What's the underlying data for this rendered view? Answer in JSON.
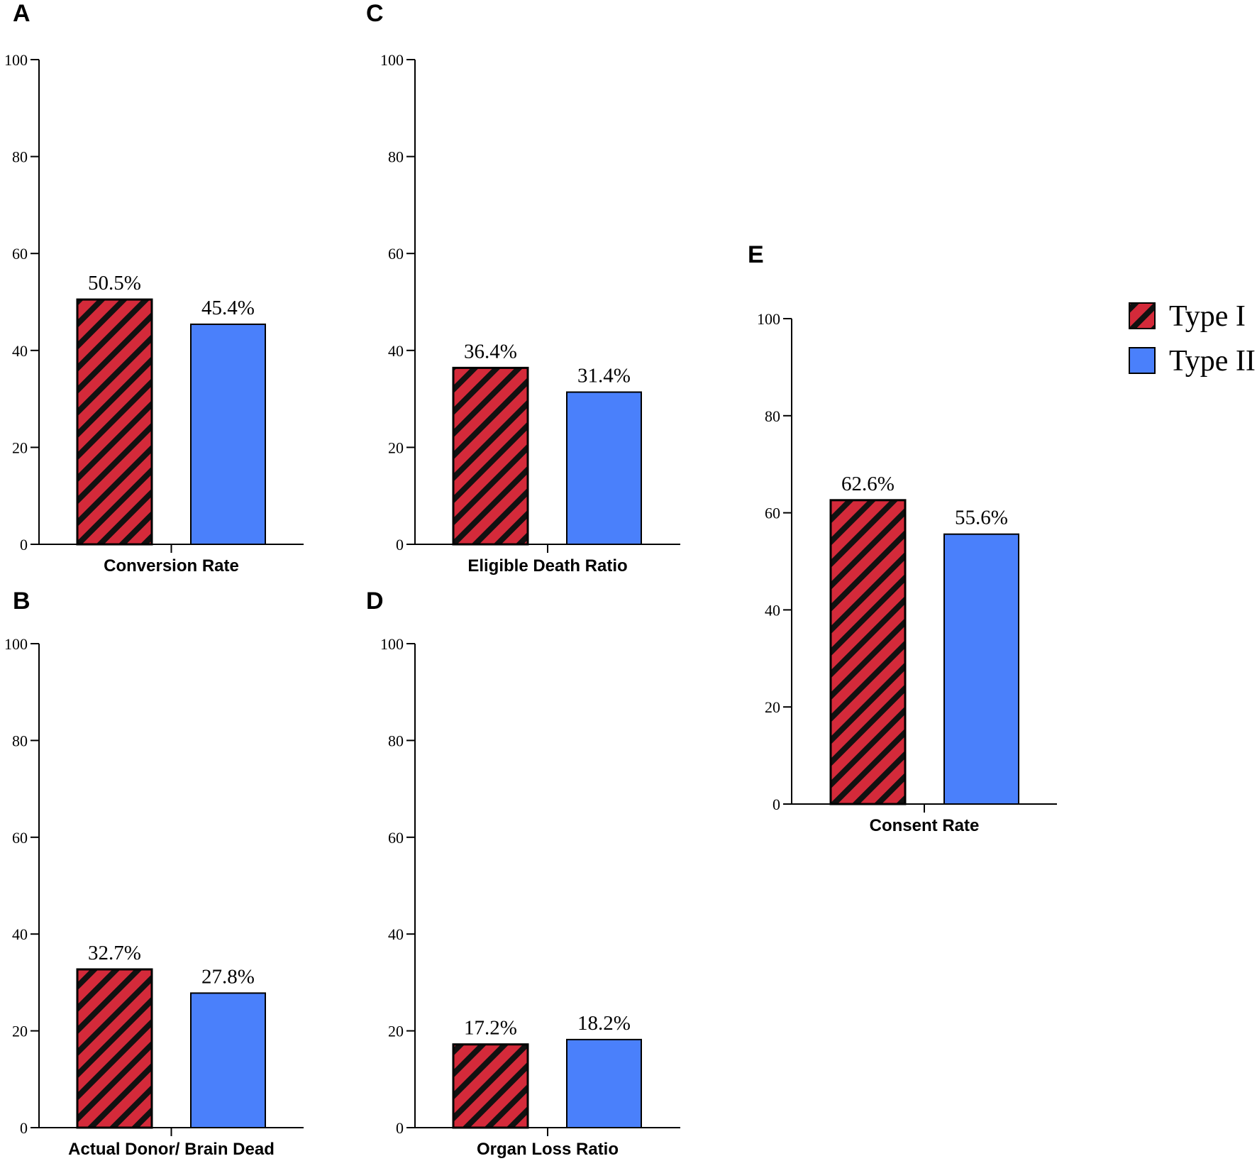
{
  "legend": {
    "items": [
      {
        "label": "Type I",
        "color": "#d42a3a",
        "pattern": "hatched"
      },
      {
        "label": "Type II",
        "color": "#4a80fb",
        "pattern": "solid"
      }
    ]
  },
  "chart_data": [
    {
      "panel": "A",
      "type": "bar",
      "xlabel": "Conversion Rate",
      "ylim": [
        0,
        100
      ],
      "yticks": [
        0,
        20,
        40,
        60,
        80,
        100
      ],
      "series": [
        {
          "name": "Type I",
          "value": 50.5,
          "label": "50.5%"
        },
        {
          "name": "Type II",
          "value": 45.4,
          "label": "45.4%"
        }
      ]
    },
    {
      "panel": "B",
      "type": "bar",
      "xlabel": "Actual Donor/ Brain Dead",
      "ylim": [
        0,
        100
      ],
      "yticks": [
        0,
        20,
        40,
        60,
        80,
        100
      ],
      "series": [
        {
          "name": "Type I",
          "value": 32.7,
          "label": "32.7%"
        },
        {
          "name": "Type II",
          "value": 27.8,
          "label": "27.8%"
        }
      ]
    },
    {
      "panel": "C",
      "type": "bar",
      "xlabel": "Eligible Death Ratio",
      "ylim": [
        0,
        100
      ],
      "yticks": [
        0,
        20,
        40,
        60,
        80,
        100
      ],
      "series": [
        {
          "name": "Type I",
          "value": 36.4,
          "label": "36.4%"
        },
        {
          "name": "Type II",
          "value": 31.4,
          "label": "31.4%"
        }
      ]
    },
    {
      "panel": "D",
      "type": "bar",
      "xlabel": "Organ Loss Ratio",
      "ylim": [
        0,
        100
      ],
      "yticks": [
        0,
        20,
        40,
        60,
        80,
        100
      ],
      "series": [
        {
          "name": "Type I",
          "value": 17.2,
          "label": "17.2%"
        },
        {
          "name": "Type II",
          "value": 18.2,
          "label": "18.2%"
        }
      ]
    },
    {
      "panel": "E",
      "type": "bar",
      "xlabel": "Consent Rate",
      "ylim": [
        0,
        100
      ],
      "yticks": [
        0,
        20,
        40,
        60,
        80,
        100
      ],
      "series": [
        {
          "name": "Type I",
          "value": 62.6,
          "label": "62.6%"
        },
        {
          "name": "Type II",
          "value": 55.6,
          "label": "55.6%"
        }
      ]
    }
  ]
}
